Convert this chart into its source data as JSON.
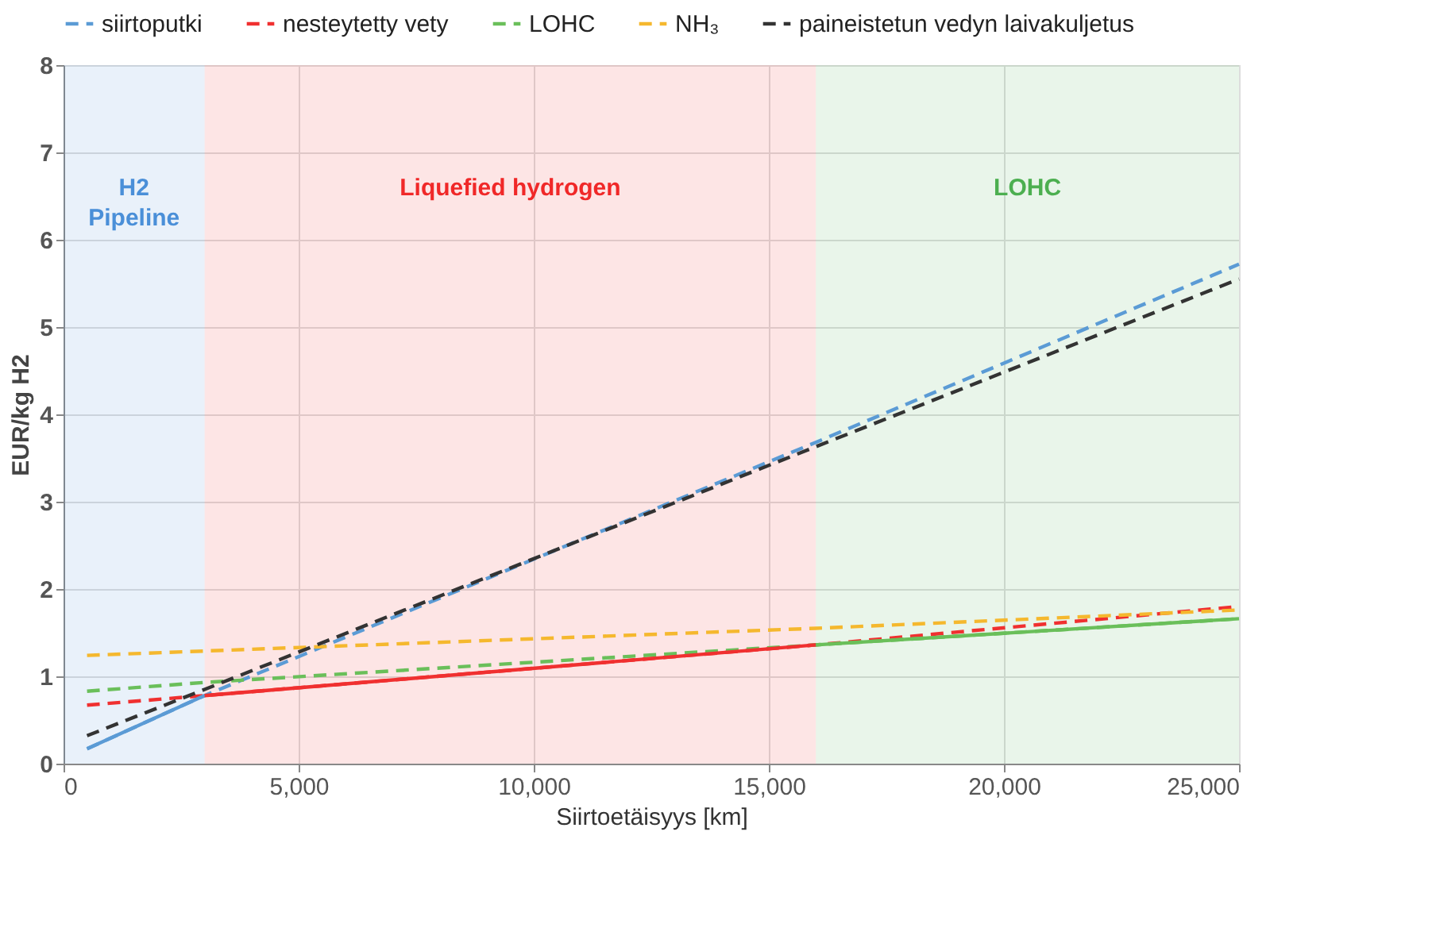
{
  "chart_data": {
    "type": "line",
    "xlabel": "Siirtoetäisyys [km]",
    "ylabel": "EUR/kg H2",
    "xlim": [
      0,
      25000
    ],
    "xticks": [
      0,
      {
        "value": 5000,
        "label": "5,000"
      },
      {
        "value": 10000,
        "label": "10,000"
      },
      {
        "value": 15000,
        "label": "15,000"
      },
      {
        "value": 20000,
        "label": "20,000"
      },
      {
        "value": 25000,
        "label": "25,000"
      }
    ],
    "ylim": [
      0,
      8
    ],
    "yticks": [
      0,
      1,
      2,
      3,
      4,
      5,
      6,
      7,
      8
    ],
    "grid": true,
    "legend": "top",
    "bands": [
      {
        "axis": "x",
        "from": 0,
        "to": 3000,
        "label": "H2 Pipeline",
        "color": "#4a8fd8"
      },
      {
        "axis": "x",
        "from": 3000,
        "to": 16000,
        "label": "Liquefied hydrogen",
        "color": "#f02828"
      },
      {
        "axis": "x",
        "from": 16000,
        "to": 25000,
        "label": "LOHC",
        "color": "#4caf50"
      }
    ],
    "series": [
      {
        "name": "siirtoputki",
        "color": "#5b9bd5",
        "line_style": "dashed",
        "x": [
          500,
          3000,
          16000,
          25000
        ],
        "values": [
          0.17,
          0.78,
          3.68,
          5.72
        ]
      },
      {
        "name": "nesteytetty vety",
        "color": "#f03030",
        "line_style": "dashed",
        "x": [
          500,
          3000,
          16000,
          25000
        ],
        "values": [
          0.67,
          0.78,
          1.36,
          1.8
        ]
      },
      {
        "name": "LOHC",
        "color": "#6abf5a",
        "line_style": "dashed",
        "x": [
          500,
          3000,
          16000,
          25000
        ],
        "values": [
          0.83,
          0.93,
          1.36,
          1.66
        ]
      },
      {
        "name": "NH₃",
        "color": "#f5b82e",
        "line_style": "dashed",
        "x": [
          500,
          16000,
          25000
        ],
        "values": [
          1.24,
          1.55,
          1.76
        ]
      },
      {
        "name": "paineistetun vedyn laivakuljetus",
        "color": "#333333",
        "line_style": "dashed",
        "x": [
          500,
          3000,
          16000,
          25000
        ],
        "values": [
          0.32,
          0.85,
          3.63,
          5.55
        ]
      },
      {
        "color": "#5b9bd5",
        "line_style": "solid",
        "x": [
          500,
          3000
        ],
        "values": [
          0.17,
          0.78
        ]
      },
      {
        "color": "#f03030",
        "line_style": "solid",
        "x": [
          3000,
          16000
        ],
        "values": [
          0.78,
          1.36
        ]
      },
      {
        "color": "#6abf5a",
        "line_style": "solid",
        "x": [
          16000,
          25000
        ],
        "values": [
          1.36,
          1.66
        ]
      }
    ]
  }
}
